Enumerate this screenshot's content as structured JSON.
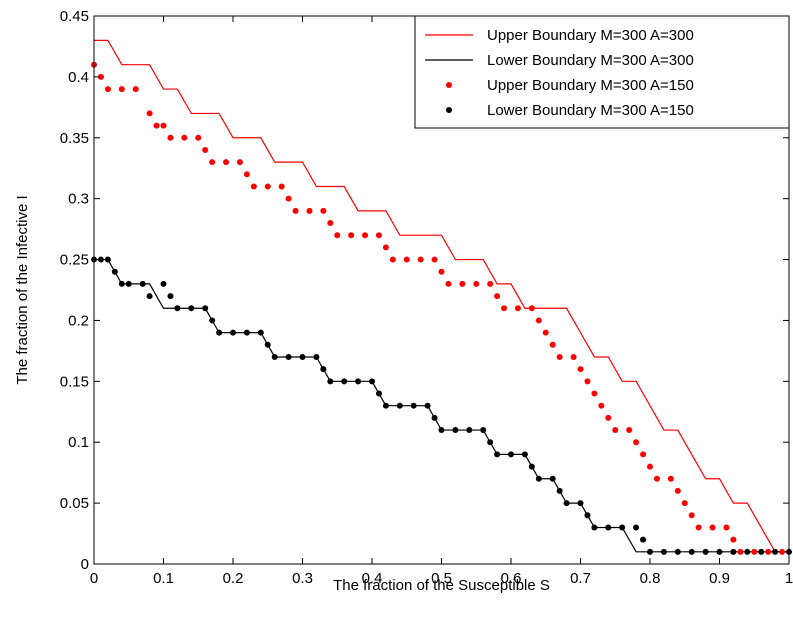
{
  "chart_data": {
    "type": "line",
    "xlabel": "The fraction of the Susceptible S",
    "ylabel": "The fraction of the Infective I",
    "xlim": [
      0,
      1
    ],
    "ylim": [
      0,
      0.45
    ],
    "xticks": [
      0,
      0.1,
      0.2,
      0.3,
      0.4,
      0.5,
      0.6,
      0.7,
      0.8,
      0.9,
      1
    ],
    "xtick_labels": [
      "0",
      "0.1",
      "0.2",
      "0.3",
      "0.4",
      "0.5",
      "0.6",
      "0.7",
      "0.8",
      "0.9",
      "1"
    ],
    "yticks": [
      0,
      0.05,
      0.1,
      0.15,
      0.2,
      0.25,
      0.3,
      0.35,
      0.4,
      0.45
    ],
    "ytick_labels": [
      "0",
      "0.05",
      "0.1",
      "0.15",
      "0.2",
      "0.25",
      "0.3",
      "0.35",
      "0.4",
      "0.45"
    ],
    "grid": false,
    "legend_position": "top-right",
    "series": [
      {
        "name": "Upper Boundary M=300 A=300",
        "style": "line",
        "color": "#ff0000",
        "points": [
          [
            0,
            0.43
          ],
          [
            0.02,
            0.43
          ],
          [
            0.04,
            0.41
          ],
          [
            0.08,
            0.41
          ],
          [
            0.1,
            0.39
          ],
          [
            0.12,
            0.39
          ],
          [
            0.14,
            0.37
          ],
          [
            0.18,
            0.37
          ],
          [
            0.2,
            0.35
          ],
          [
            0.24,
            0.35
          ],
          [
            0.26,
            0.33
          ],
          [
            0.3,
            0.33
          ],
          [
            0.32,
            0.31
          ],
          [
            0.36,
            0.31
          ],
          [
            0.38,
            0.29
          ],
          [
            0.42,
            0.29
          ],
          [
            0.44,
            0.27
          ],
          [
            0.5,
            0.27
          ],
          [
            0.52,
            0.25
          ],
          [
            0.56,
            0.25
          ],
          [
            0.58,
            0.23
          ],
          [
            0.6,
            0.23
          ],
          [
            0.62,
            0.21
          ],
          [
            0.68,
            0.21
          ],
          [
            0.7,
            0.19
          ],
          [
            0.72,
            0.17
          ],
          [
            0.74,
            0.17
          ],
          [
            0.76,
            0.15
          ],
          [
            0.78,
            0.15
          ],
          [
            0.8,
            0.13
          ],
          [
            0.82,
            0.11
          ],
          [
            0.84,
            0.11
          ],
          [
            0.86,
            0.09
          ],
          [
            0.88,
            0.07
          ],
          [
            0.9,
            0.07
          ],
          [
            0.92,
            0.05
          ],
          [
            0.94,
            0.05
          ],
          [
            0.96,
            0.03
          ],
          [
            0.98,
            0.01
          ],
          [
            1.0,
            0.01
          ]
        ]
      },
      {
        "name": "Lower Boundary M=300 A=300",
        "style": "line",
        "color": "#000000",
        "points": [
          [
            0,
            0.25
          ],
          [
            0.02,
            0.25
          ],
          [
            0.04,
            0.23
          ],
          [
            0.08,
            0.23
          ],
          [
            0.1,
            0.21
          ],
          [
            0.16,
            0.21
          ],
          [
            0.18,
            0.19
          ],
          [
            0.24,
            0.19
          ],
          [
            0.26,
            0.17
          ],
          [
            0.32,
            0.17
          ],
          [
            0.34,
            0.15
          ],
          [
            0.4,
            0.15
          ],
          [
            0.42,
            0.13
          ],
          [
            0.48,
            0.13
          ],
          [
            0.5,
            0.11
          ],
          [
            0.56,
            0.11
          ],
          [
            0.58,
            0.09
          ],
          [
            0.62,
            0.09
          ],
          [
            0.64,
            0.07
          ],
          [
            0.66,
            0.07
          ],
          [
            0.68,
            0.05
          ],
          [
            0.7,
            0.05
          ],
          [
            0.72,
            0.03
          ],
          [
            0.76,
            0.03
          ],
          [
            0.78,
            0.01
          ],
          [
            1.0,
            0.01
          ]
        ]
      },
      {
        "name": "Upper Boundary M=300 A=150",
        "style": "dots",
        "color": "#ff0000",
        "points": [
          [
            0,
            0.41
          ],
          [
            0.01,
            0.4
          ],
          [
            0.02,
            0.39
          ],
          [
            0.04,
            0.39
          ],
          [
            0.06,
            0.39
          ],
          [
            0.08,
            0.37
          ],
          [
            0.09,
            0.36
          ],
          [
            0.1,
            0.36
          ],
          [
            0.11,
            0.35
          ],
          [
            0.13,
            0.35
          ],
          [
            0.15,
            0.35
          ],
          [
            0.16,
            0.34
          ],
          [
            0.17,
            0.33
          ],
          [
            0.19,
            0.33
          ],
          [
            0.21,
            0.33
          ],
          [
            0.22,
            0.32
          ],
          [
            0.23,
            0.31
          ],
          [
            0.25,
            0.31
          ],
          [
            0.27,
            0.31
          ],
          [
            0.28,
            0.3
          ],
          [
            0.29,
            0.29
          ],
          [
            0.31,
            0.29
          ],
          [
            0.33,
            0.29
          ],
          [
            0.34,
            0.28
          ],
          [
            0.35,
            0.27
          ],
          [
            0.37,
            0.27
          ],
          [
            0.39,
            0.27
          ],
          [
            0.41,
            0.27
          ],
          [
            0.42,
            0.26
          ],
          [
            0.43,
            0.25
          ],
          [
            0.45,
            0.25
          ],
          [
            0.47,
            0.25
          ],
          [
            0.49,
            0.25
          ],
          [
            0.5,
            0.24
          ],
          [
            0.51,
            0.23
          ],
          [
            0.53,
            0.23
          ],
          [
            0.55,
            0.23
          ],
          [
            0.57,
            0.23
          ],
          [
            0.58,
            0.22
          ],
          [
            0.59,
            0.21
          ],
          [
            0.61,
            0.21
          ],
          [
            0.63,
            0.21
          ],
          [
            0.64,
            0.2
          ],
          [
            0.65,
            0.19
          ],
          [
            0.66,
            0.18
          ],
          [
            0.67,
            0.17
          ],
          [
            0.69,
            0.17
          ],
          [
            0.7,
            0.16
          ],
          [
            0.71,
            0.15
          ],
          [
            0.72,
            0.14
          ],
          [
            0.73,
            0.13
          ],
          [
            0.74,
            0.12
          ],
          [
            0.75,
            0.11
          ],
          [
            0.77,
            0.11
          ],
          [
            0.78,
            0.1
          ],
          [
            0.79,
            0.09
          ],
          [
            0.8,
            0.08
          ],
          [
            0.81,
            0.07
          ],
          [
            0.83,
            0.07
          ],
          [
            0.84,
            0.06
          ],
          [
            0.85,
            0.05
          ],
          [
            0.86,
            0.04
          ],
          [
            0.87,
            0.03
          ],
          [
            0.89,
            0.03
          ],
          [
            0.91,
            0.03
          ],
          [
            0.92,
            0.02
          ],
          [
            0.93,
            0.01
          ],
          [
            0.95,
            0.01
          ],
          [
            0.97,
            0.01
          ],
          [
            0.99,
            0.01
          ]
        ]
      },
      {
        "name": "Lower Boundary M=300 A=150",
        "style": "dots",
        "color": "#000000",
        "points": [
          [
            0,
            0.25
          ],
          [
            0.01,
            0.25
          ],
          [
            0.02,
            0.25
          ],
          [
            0.03,
            0.24
          ],
          [
            0.04,
            0.23
          ],
          [
            0.05,
            0.23
          ],
          [
            0.07,
            0.23
          ],
          [
            0.08,
            0.22
          ],
          [
            0.1,
            0.23
          ],
          [
            0.11,
            0.22
          ],
          [
            0.12,
            0.21
          ],
          [
            0.14,
            0.21
          ],
          [
            0.16,
            0.21
          ],
          [
            0.17,
            0.2
          ],
          [
            0.18,
            0.19
          ],
          [
            0.2,
            0.19
          ],
          [
            0.22,
            0.19
          ],
          [
            0.24,
            0.19
          ],
          [
            0.25,
            0.18
          ],
          [
            0.26,
            0.17
          ],
          [
            0.28,
            0.17
          ],
          [
            0.3,
            0.17
          ],
          [
            0.32,
            0.17
          ],
          [
            0.33,
            0.16
          ],
          [
            0.34,
            0.15
          ],
          [
            0.36,
            0.15
          ],
          [
            0.38,
            0.15
          ],
          [
            0.4,
            0.15
          ],
          [
            0.41,
            0.14
          ],
          [
            0.42,
            0.13
          ],
          [
            0.44,
            0.13
          ],
          [
            0.46,
            0.13
          ],
          [
            0.48,
            0.13
          ],
          [
            0.49,
            0.12
          ],
          [
            0.5,
            0.11
          ],
          [
            0.52,
            0.11
          ],
          [
            0.54,
            0.11
          ],
          [
            0.56,
            0.11
          ],
          [
            0.57,
            0.1
          ],
          [
            0.58,
            0.09
          ],
          [
            0.6,
            0.09
          ],
          [
            0.62,
            0.09
          ],
          [
            0.63,
            0.08
          ],
          [
            0.64,
            0.07
          ],
          [
            0.66,
            0.07
          ],
          [
            0.67,
            0.06
          ],
          [
            0.68,
            0.05
          ],
          [
            0.7,
            0.05
          ],
          [
            0.71,
            0.04
          ],
          [
            0.72,
            0.03
          ],
          [
            0.74,
            0.03
          ],
          [
            0.76,
            0.03
          ],
          [
            0.78,
            0.03
          ],
          [
            0.79,
            0.02
          ],
          [
            0.8,
            0.01
          ],
          [
            0.82,
            0.01
          ],
          [
            0.84,
            0.01
          ],
          [
            0.86,
            0.01
          ],
          [
            0.88,
            0.01
          ],
          [
            0.9,
            0.01
          ],
          [
            0.92,
            0.01
          ],
          [
            0.94,
            0.01
          ],
          [
            0.96,
            0.01
          ],
          [
            0.98,
            0.01
          ],
          [
            1.0,
            0.01
          ]
        ]
      }
    ]
  }
}
